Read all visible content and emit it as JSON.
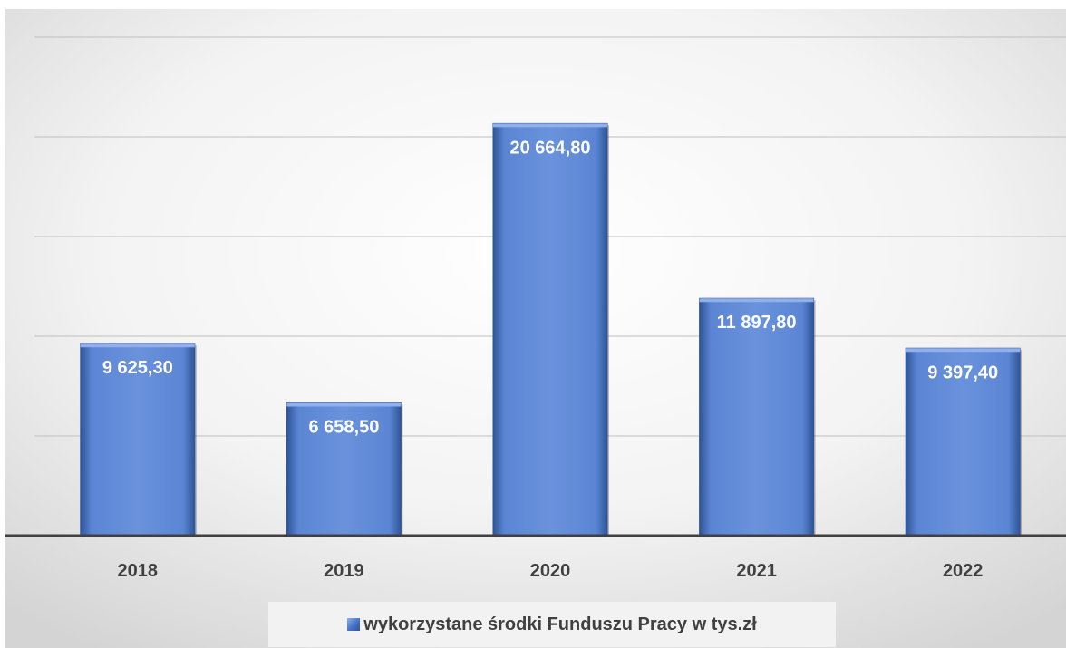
{
  "chart_data": {
    "type": "bar",
    "categories": [
      "2018",
      "2019",
      "2020",
      "2021",
      "2022"
    ],
    "values": [
      9625.3,
      6658.5,
      20664.8,
      11897.8,
      9397.4
    ],
    "value_labels": [
      "9 625,30",
      "6 658,50",
      "20 664,80",
      "11 897,80",
      "9 397,40"
    ],
    "series": [
      {
        "name": "wykorzystane środki Funduszu Pracy w tys.zł",
        "values": [
          9625.3,
          6658.5,
          20664.8,
          11897.8,
          9397.4
        ]
      }
    ],
    "title": "",
    "xlabel": "",
    "ylabel": "",
    "ylim": [
      0,
      25000
    ],
    "grid": true,
    "legend": "bottom",
    "colors": {
      "bar": "#4472c4",
      "bar_light": "#8fb0ec",
      "bar_dark": "#2f5597",
      "gridline": "#bfbfbf",
      "axis": "#404040",
      "label": "#404040",
      "data_label": "#ffffff"
    }
  },
  "legend": {
    "icon": "bar-series-swatch-icon",
    "label": "wykorzystane środki Funduszu Pracy w tys.zł"
  }
}
